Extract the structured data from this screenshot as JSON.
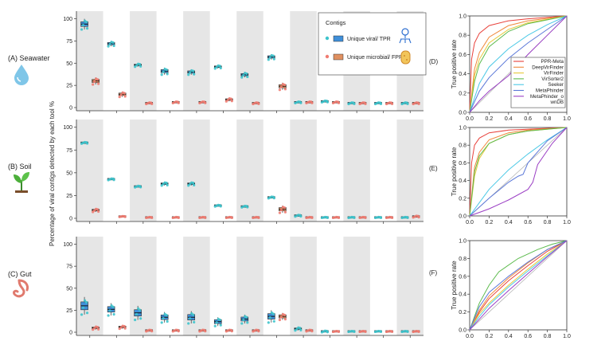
{
  "colors": {
    "viral": "#3ec4cc",
    "viral_box": "#3f8fd9",
    "microbial": "#f07c72",
    "microbial_box": "#e09060",
    "band": "#e6e6e6",
    "roc": {
      "PPR-Meta": "#e8413b",
      "DeepVirFinder": "#f0883a",
      "VirFinder": "#e6c93a",
      "VirSorter2": "#5dbb4e",
      "Seeker": "#4cc9e6",
      "MetaPhinder": "#5b78d8",
      "MetaPhinder_o wnDB": "#9b3fc4",
      "diagonal": "#aaaaaa"
    }
  },
  "sample_labels": {
    "seawater": "(A) Seawater",
    "soil": "(B) Soil",
    "gut": "(C) Gut"
  },
  "sample_icons": [
    "water-drop-icon",
    "seedling-icon",
    "stomach-icon"
  ],
  "y_axis_label": "Percentage of viral contigs detected by each tool %",
  "legend": {
    "title": "Contigs",
    "viral": "Unique viral/ TPR",
    "microbial": "Unique microbial/ FPR"
  },
  "chart_data": [
    {
      "type": "box",
      "panel": "A",
      "sample": "Seawater",
      "ylim": [
        0,
        105
      ],
      "yticks": [
        0,
        25,
        50,
        75,
        100
      ],
      "n_tools": 13,
      "viral_median": [
        94,
        72,
        48,
        41,
        40,
        46,
        37,
        57,
        6,
        7,
        5,
        5,
        5
      ],
      "viral_spread": [
        6,
        3,
        2,
        4,
        3,
        2,
        3,
        3,
        1,
        1,
        1,
        1,
        1
      ],
      "microbial_median": [
        30,
        15,
        5,
        6,
        6,
        9,
        5,
        24,
        6,
        6,
        5,
        5,
        5
      ],
      "microbial_spread": [
        4,
        3,
        1,
        1,
        1,
        2,
        1,
        4,
        1,
        1,
        1,
        1,
        1
      ]
    },
    {
      "type": "box",
      "panel": "B",
      "sample": "Soil",
      "ylim": [
        0,
        105
      ],
      "yticks": [
        0,
        25,
        50,
        75,
        100
      ],
      "n_tools": 13,
      "viral_median": [
        83,
        43,
        35,
        38,
        38,
        14,
        13,
        23,
        3,
        1,
        1,
        1,
        1
      ],
      "viral_spread": [
        1,
        1,
        1,
        2,
        2,
        1,
        1,
        1,
        1,
        0.5,
        0.5,
        0.5,
        0.5
      ],
      "microbial_median": [
        9,
        2,
        1,
        1,
        1,
        1,
        1,
        10,
        1,
        1,
        1,
        1,
        2
      ],
      "microbial_spread": [
        2,
        0.5,
        0.5,
        0.5,
        0.5,
        0.5,
        0.5,
        4,
        0.5,
        0.5,
        0.5,
        0.5,
        1
      ]
    },
    {
      "type": "box",
      "panel": "C",
      "sample": "Gut",
      "ylim": [
        0,
        105
      ],
      "yticks": [
        0,
        25,
        50,
        75,
        100
      ],
      "n_tools": 13,
      "viral_median": [
        30,
        26,
        22,
        17,
        17,
        12,
        15,
        18,
        4,
        1,
        1,
        1,
        1
      ],
      "viral_spread": [
        10,
        7,
        8,
        6,
        7,
        5,
        5,
        7,
        2,
        1,
        0.5,
        0.5,
        0.5
      ],
      "microbial_median": [
        5,
        6,
        2,
        2,
        2,
        2,
        2,
        18,
        2,
        1,
        1,
        1,
        1
      ],
      "microbial_spread": [
        2,
        2,
        1,
        1,
        1,
        1,
        1,
        4,
        1,
        0.5,
        0.5,
        0.5,
        0.5
      ]
    },
    {
      "type": "line",
      "panel": "D",
      "sample": "Seawater",
      "ylabel": "True positive rate",
      "xlim": [
        0,
        1
      ],
      "ylim": [
        0,
        1
      ],
      "ticks": [
        "0.0",
        "0.2",
        "0.4",
        "0.6",
        "0.8",
        "1.0"
      ],
      "legend_entries": [
        "PPR-Meta",
        "DeepVirFinder",
        "VirFinder",
        "VirSorter2",
        "Seeker",
        "MetaPhinder",
        "MetaPhinder_o wnDB"
      ],
      "series": [
        {
          "name": "PPR-Meta",
          "x": [
            0,
            0.02,
            0.05,
            0.1,
            0.2,
            0.4,
            0.6,
            1
          ],
          "y": [
            0,
            0.55,
            0.72,
            0.82,
            0.9,
            0.95,
            0.97,
            1
          ]
        },
        {
          "name": "DeepVirFinder",
          "x": [
            0,
            0.05,
            0.1,
            0.2,
            0.4,
            0.6,
            1
          ],
          "y": [
            0,
            0.45,
            0.62,
            0.78,
            0.9,
            0.95,
            1
          ]
        },
        {
          "name": "VirFinder",
          "x": [
            0,
            0.05,
            0.1,
            0.2,
            0.4,
            0.6,
            1
          ],
          "y": [
            0,
            0.38,
            0.55,
            0.72,
            0.86,
            0.93,
            1
          ]
        },
        {
          "name": "VirSorter2",
          "x": [
            0,
            0.05,
            0.1,
            0.2,
            0.4,
            0.6,
            1
          ],
          "y": [
            0,
            0.32,
            0.5,
            0.68,
            0.84,
            0.92,
            1
          ]
        },
        {
          "name": "Seeker",
          "x": [
            0,
            0.1,
            0.2,
            0.4,
            0.6,
            0.8,
            1
          ],
          "y": [
            0,
            0.3,
            0.47,
            0.66,
            0.8,
            0.91,
            1
          ]
        },
        {
          "name": "MetaPhinder",
          "x": [
            0,
            0.1,
            0.2,
            0.4,
            0.6,
            0.8,
            1
          ],
          "y": [
            0,
            0.22,
            0.36,
            0.56,
            0.72,
            0.86,
            1
          ]
        },
        {
          "name": "MetaPhinder_o wnDB",
          "x": [
            0,
            0.1,
            0.2,
            0.4,
            0.6,
            0.8,
            1
          ],
          "y": [
            0,
            0.12,
            0.22,
            0.38,
            0.6,
            0.8,
            1
          ]
        }
      ]
    },
    {
      "type": "line",
      "panel": "E",
      "sample": "Soil",
      "ylabel": "True positive rate",
      "xlim": [
        0,
        1
      ],
      "ylim": [
        0,
        1
      ],
      "ticks": [
        "0.0",
        "0.2",
        "0.4",
        "0.6",
        "0.8",
        "1.0"
      ],
      "series": [
        {
          "name": "PPR-Meta",
          "x": [
            0,
            0.02,
            0.05,
            0.1,
            0.2,
            0.4,
            1
          ],
          "y": [
            0,
            0.6,
            0.8,
            0.88,
            0.94,
            0.97,
            1
          ]
        },
        {
          "name": "DeepVirFinder",
          "x": [
            0,
            0.05,
            0.1,
            0.2,
            0.4,
            0.6,
            1
          ],
          "y": [
            0,
            0.55,
            0.72,
            0.86,
            0.94,
            0.97,
            1
          ]
        },
        {
          "name": "VirFinder",
          "x": [
            0,
            0.05,
            0.1,
            0.2,
            0.4,
            0.6,
            1
          ],
          "y": [
            0,
            0.45,
            0.65,
            0.82,
            0.92,
            0.96,
            1
          ]
        },
        {
          "name": "VirSorter2",
          "x": [
            0,
            0.05,
            0.1,
            0.2,
            0.4,
            0.6,
            1
          ],
          "y": [
            0,
            0.5,
            0.68,
            0.82,
            0.92,
            0.96,
            1
          ]
        },
        {
          "name": "Seeker",
          "x": [
            0,
            0.1,
            0.2,
            0.4,
            0.6,
            0.8,
            1
          ],
          "y": [
            0,
            0.15,
            0.3,
            0.52,
            0.7,
            0.86,
            1
          ]
        },
        {
          "name": "MetaPhinder",
          "x": [
            0,
            0.2,
            0.4,
            0.5,
            0.55,
            0.6,
            0.8,
            1
          ],
          "y": [
            0,
            0.2,
            0.38,
            0.45,
            0.47,
            0.6,
            0.85,
            1
          ]
        },
        {
          "name": "MetaPhinder_o wnDB",
          "x": [
            0,
            0.2,
            0.4,
            0.6,
            0.65,
            0.7,
            0.85,
            1
          ],
          "y": [
            0,
            0.08,
            0.18,
            0.3,
            0.38,
            0.58,
            0.82,
            1
          ]
        }
      ]
    },
    {
      "type": "line",
      "panel": "F",
      "sample": "Gut",
      "ylabel": "True positive rate",
      "xlim": [
        0,
        1
      ],
      "ylim": [
        0,
        1
      ],
      "ticks": [
        "0.0",
        "0.2",
        "0.4",
        "0.6",
        "0.8",
        "1.0"
      ],
      "series": [
        {
          "name": "PPR-Meta",
          "x": [
            0,
            0.1,
            0.2,
            0.4,
            0.6,
            0.8,
            1
          ],
          "y": [
            0,
            0.2,
            0.35,
            0.55,
            0.72,
            0.88,
            1
          ]
        },
        {
          "name": "DeepVirFinder",
          "x": [
            0,
            0.1,
            0.2,
            0.4,
            0.6,
            0.8,
            1
          ],
          "y": [
            0,
            0.22,
            0.38,
            0.58,
            0.75,
            0.9,
            1
          ]
        },
        {
          "name": "VirFinder",
          "x": [
            0,
            0.1,
            0.2,
            0.4,
            0.6,
            0.8,
            1
          ],
          "y": [
            0,
            0.18,
            0.3,
            0.5,
            0.68,
            0.85,
            1
          ]
        },
        {
          "name": "VirSorter2",
          "x": [
            0,
            0.1,
            0.2,
            0.3,
            0.5,
            0.7,
            0.85,
            1
          ],
          "y": [
            0,
            0.3,
            0.5,
            0.65,
            0.8,
            0.9,
            0.96,
            1
          ]
        },
        {
          "name": "Seeker",
          "x": [
            0,
            0.1,
            0.2,
            0.4,
            0.6,
            0.8,
            1
          ],
          "y": [
            0,
            0.15,
            0.28,
            0.48,
            0.66,
            0.83,
            1
          ]
        },
        {
          "name": "MetaPhinder",
          "x": [
            0,
            0.1,
            0.2,
            0.4,
            0.6,
            0.8,
            1
          ],
          "y": [
            0,
            0.26,
            0.42,
            0.6,
            0.76,
            0.9,
            1
          ]
        },
        {
          "name": "MetaPhinder_o wnDB",
          "x": [
            0,
            0.1,
            0.2,
            0.4,
            0.6,
            0.8,
            1
          ],
          "y": [
            0,
            0.12,
            0.24,
            0.44,
            0.63,
            0.82,
            1
          ]
        }
      ]
    }
  ]
}
